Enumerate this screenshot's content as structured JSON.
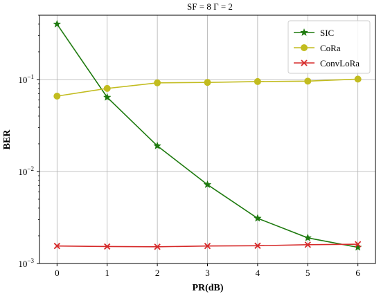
{
  "chart_data": {
    "type": "line",
    "title": "SF = 8   Γ = 2",
    "xlabel": "PR(dB)",
    "ylabel": "BER",
    "x": [
      0,
      1,
      2,
      3,
      4,
      5,
      6
    ],
    "xlim": [
      -0.35,
      6.35
    ],
    "ylim": [
      0.001,
      0.5
    ],
    "y_scale": "log",
    "x_ticks": [
      0,
      1,
      2,
      3,
      4,
      5,
      6
    ],
    "y_ticks": [
      {
        "value": 0.1,
        "base": "10",
        "exp": "−1"
      },
      {
        "value": 0.01,
        "base": "10",
        "exp": "−2"
      },
      {
        "value": 0.001,
        "base": "10",
        "exp": "−3"
      }
    ],
    "grid": true,
    "legend_position": "top-right",
    "series": [
      {
        "name": "SIC",
        "color": "#1e7a0f",
        "marker": "star",
        "values": [
          0.4,
          0.064,
          0.019,
          0.0072,
          0.0031,
          0.0019,
          0.0015
        ]
      },
      {
        "name": "CoRa",
        "color": "#c2bc1f",
        "marker": "circle",
        "values": [
          0.066,
          0.08,
          0.092,
          0.093,
          0.095,
          0.096,
          0.101
        ]
      },
      {
        "name": "ConvLoRa",
        "color": "#d62a2a",
        "marker": "x",
        "values": [
          0.00155,
          0.00153,
          0.00152,
          0.00155,
          0.00156,
          0.0016,
          0.00162
        ]
      }
    ]
  }
}
